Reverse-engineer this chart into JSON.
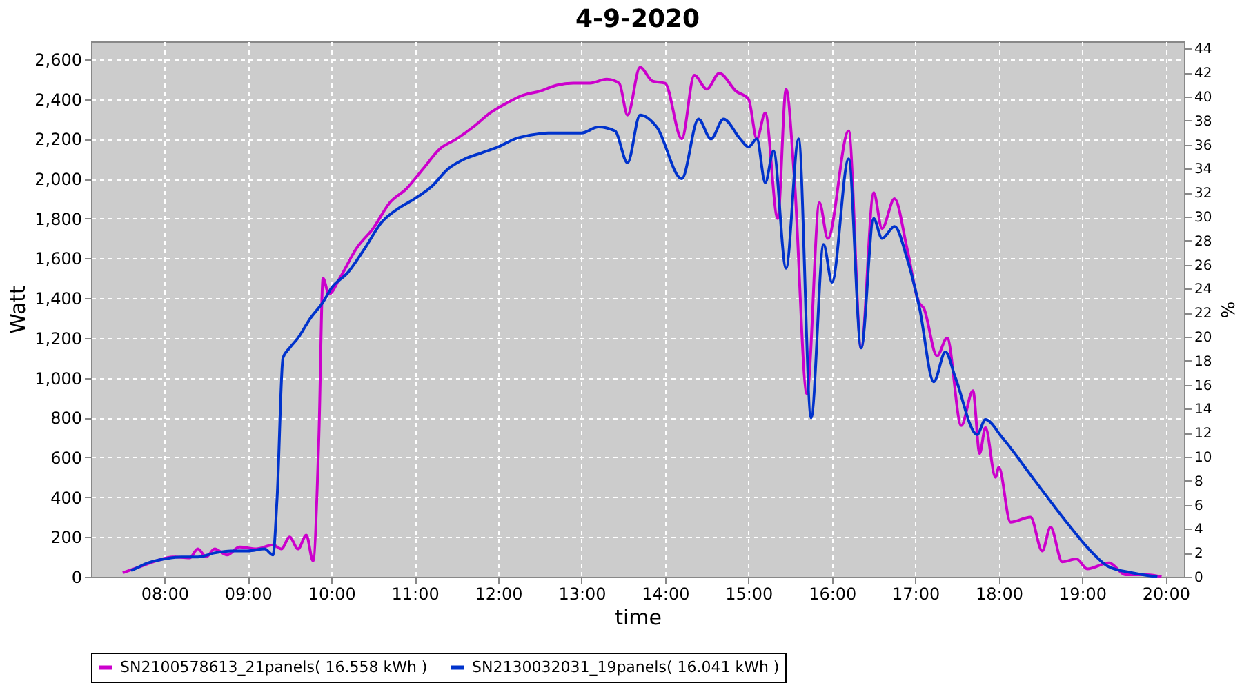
{
  "chart_data": {
    "type": "line",
    "title": "4-9-2020",
    "xlabel": "time",
    "ylabel": "Watt",
    "y2label": "%",
    "xlim": [
      7.12,
      20.22
    ],
    "xticks": [
      {
        "value": 8,
        "label": "08:00"
      },
      {
        "value": 9,
        "label": "09:00"
      },
      {
        "value": 10,
        "label": "10:00"
      },
      {
        "value": 11,
        "label": "11:00"
      },
      {
        "value": 12,
        "label": "12:00"
      },
      {
        "value": 13,
        "label": "13:00"
      },
      {
        "value": 14,
        "label": "14:00"
      },
      {
        "value": 15,
        "label": "15:00"
      },
      {
        "value": 16,
        "label": "16:00"
      },
      {
        "value": 17,
        "label": "17:00"
      },
      {
        "value": 18,
        "label": "18:00"
      },
      {
        "value": 19,
        "label": "19:00"
      },
      {
        "value": 20,
        "label": "20:00"
      }
    ],
    "ylim": [
      0,
      2690
    ],
    "yticks": [
      0,
      200,
      400,
      600,
      800,
      {
        "value": 1000,
        "label": "1,000"
      },
      {
        "value": 1200,
        "label": "1,200"
      },
      {
        "value": 1400,
        "label": "1,400"
      },
      {
        "value": 1600,
        "label": "1,600"
      },
      {
        "value": 1800,
        "label": "1,800"
      },
      {
        "value": 2000,
        "label": "2,000"
      },
      {
        "value": 2200,
        "label": "2,200"
      },
      {
        "value": 2400,
        "label": "2,400"
      },
      {
        "value": 2600,
        "label": "2,600"
      }
    ],
    "y2lim": [
      0,
      44.6
    ],
    "y2ticks": [
      0,
      2,
      4,
      6,
      8,
      10,
      12,
      14,
      16,
      18,
      20,
      22,
      24,
      26,
      28,
      30,
      32,
      34,
      36,
      38,
      40,
      42,
      44
    ],
    "grid": true,
    "legend": "bottom",
    "marker": "none",
    "line_style": "solid",
    "series": [
      {
        "name": "SN2100578613_21panels( 16.558 kWh )",
        "color": "#cc00cc",
        "x": [
          7.5,
          7.7,
          7.9,
          8.1,
          8.3,
          8.4,
          8.5,
          8.6,
          8.75,
          8.9,
          9.1,
          9.3,
          9.4,
          9.5,
          9.6,
          9.7,
          9.78,
          9.85,
          9.9,
          9.97,
          10.1,
          10.3,
          10.5,
          10.7,
          10.9,
          11.1,
          11.3,
          11.5,
          11.7,
          11.9,
          12.1,
          12.3,
          12.5,
          12.7,
          12.9,
          13.1,
          13.3,
          13.45,
          13.55,
          13.7,
          13.85,
          14.0,
          14.2,
          14.35,
          14.5,
          14.65,
          14.85,
          15.0,
          15.1,
          15.2,
          15.35,
          15.45,
          15.55,
          15.7,
          15.85,
          15.95,
          16.2,
          16.35,
          16.5,
          16.6,
          16.75,
          16.9,
          17.04,
          17.1,
          17.26,
          17.38,
          17.55,
          17.69,
          17.77,
          17.84,
          17.96,
          18.0,
          18.14,
          18.38,
          18.52,
          18.62,
          18.76,
          18.93,
          19.06,
          19.32,
          19.52,
          19.78,
          19.95
        ],
        "values": [
          20,
          50,
          80,
          100,
          95,
          140,
          100,
          140,
          110,
          150,
          140,
          160,
          140,
          200,
          140,
          210,
          80,
          700,
          1500,
          1420,
          1500,
          1650,
          1750,
          1880,
          1950,
          2050,
          2150,
          2200,
          2260,
          2330,
          2380,
          2420,
          2440,
          2470,
          2480,
          2480,
          2500,
          2480,
          2320,
          2560,
          2490,
          2480,
          2200,
          2520,
          2450,
          2530,
          2440,
          2400,
          2200,
          2330,
          1800,
          2450,
          2000,
          920,
          1880,
          1700,
          2240,
          1150,
          1930,
          1750,
          1900,
          1650,
          1380,
          1350,
          1110,
          1200,
          760,
          935,
          620,
          750,
          500,
          550,
          275,
          300,
          130,
          250,
          75,
          90,
          40,
          70,
          10,
          10,
          0
        ]
      },
      {
        "name": "SN2130032031_19panels( 16.041 kWh )",
        "color": "#0033cc",
        "x": [
          7.6,
          7.8,
          8.0,
          8.2,
          8.4,
          8.6,
          8.8,
          9.0,
          9.2,
          9.3,
          9.35,
          9.42,
          9.5,
          9.6,
          9.75,
          9.9,
          10.0,
          10.2,
          10.4,
          10.6,
          10.8,
          11.0,
          11.2,
          11.4,
          11.6,
          11.8,
          12.0,
          12.2,
          12.4,
          12.6,
          12.8,
          13.0,
          13.2,
          13.4,
          13.55,
          13.7,
          13.9,
          14.2,
          14.4,
          14.55,
          14.7,
          14.9,
          15.0,
          15.1,
          15.2,
          15.3,
          15.45,
          15.6,
          15.75,
          15.9,
          16.0,
          16.2,
          16.35,
          16.5,
          16.6,
          16.75,
          16.9,
          17.05,
          17.22,
          17.36,
          17.48,
          17.74,
          17.84,
          18.04,
          18.42,
          18.84,
          19.1,
          19.3,
          19.6,
          19.9
        ],
        "values": [
          30,
          70,
          90,
          100,
          100,
          120,
          130,
          130,
          140,
          110,
          400,
          1100,
          1150,
          1200,
          1300,
          1380,
          1450,
          1530,
          1650,
          1780,
          1850,
          1900,
          1960,
          2050,
          2100,
          2130,
          2160,
          2200,
          2220,
          2230,
          2230,
          2230,
          2260,
          2240,
          2080,
          2320,
          2260,
          2000,
          2300,
          2200,
          2300,
          2200,
          2160,
          2200,
          1980,
          2140,
          1550,
          2200,
          800,
          1670,
          1480,
          2100,
          1150,
          1800,
          1700,
          1760,
          1600,
          1350,
          980,
          1130,
          1000,
          715,
          790,
          700,
          490,
          260,
          130,
          55,
          20,
          0
        ]
      }
    ]
  }
}
